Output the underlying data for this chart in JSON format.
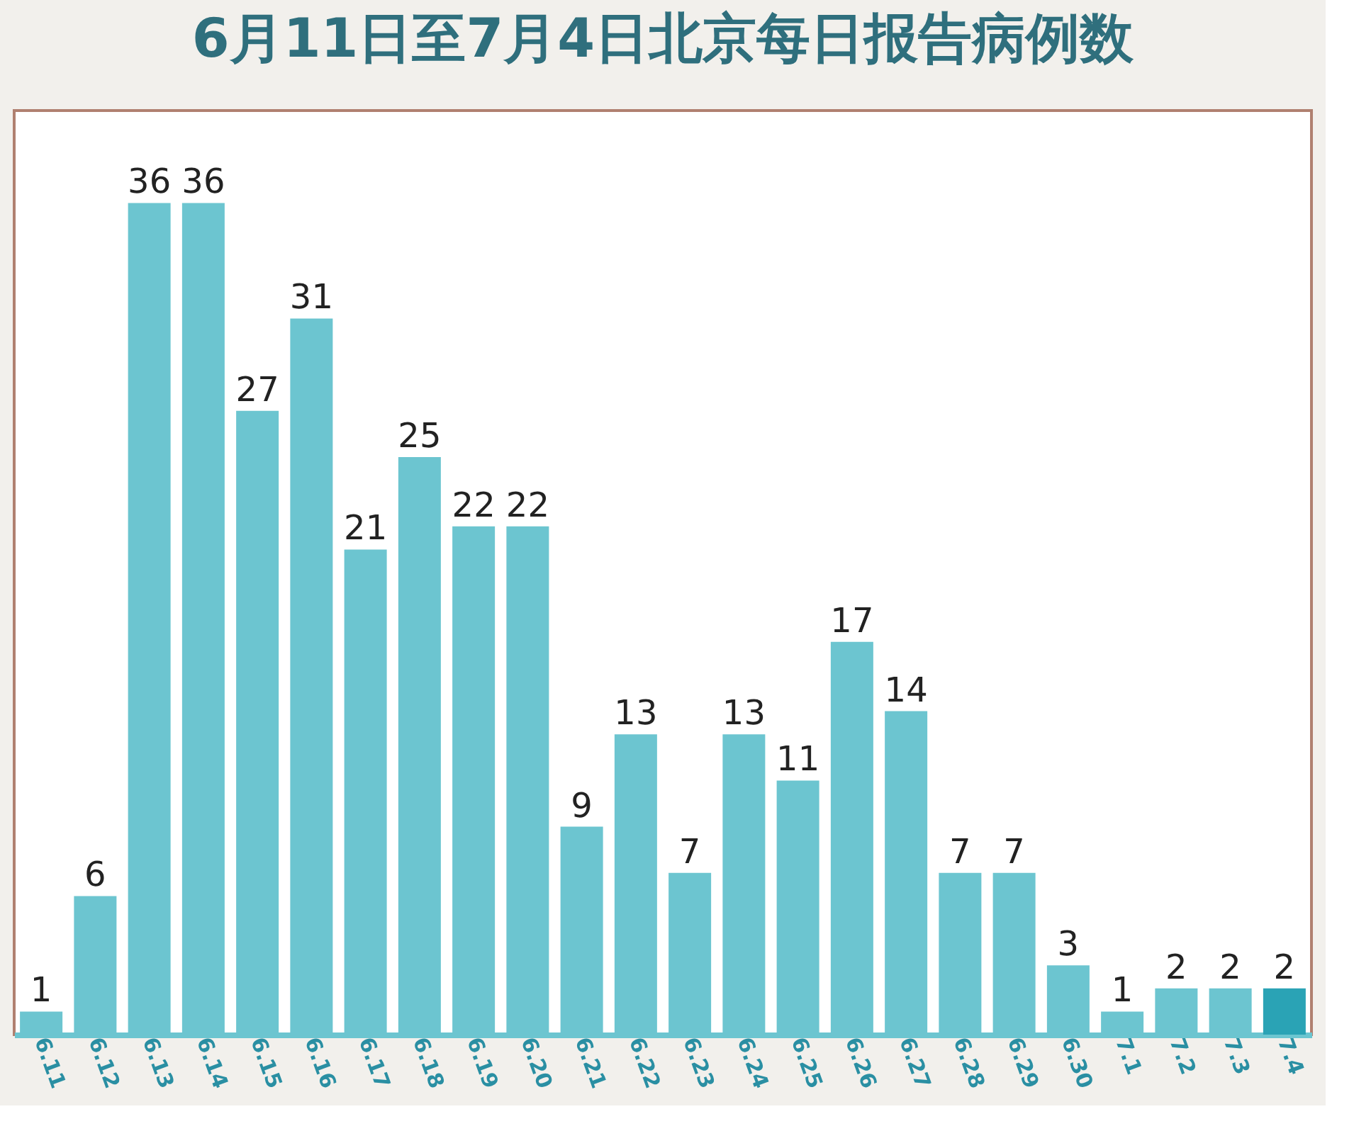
{
  "chart_data": {
    "type": "bar",
    "title": "6月11日至7月4日北京每日报告病例数",
    "categories": [
      "6.11",
      "6.12",
      "6.13",
      "6.14",
      "6.15",
      "6.16",
      "6.17",
      "6.18",
      "6.19",
      "6.20",
      "6.21",
      "6.22",
      "6.23",
      "6.24",
      "6.25",
      "6.26",
      "6.27",
      "6.28",
      "6.29",
      "6.30",
      "7.1",
      "7.2",
      "7.3",
      "7.4"
    ],
    "values": [
      1,
      6,
      36,
      36,
      27,
      31,
      21,
      25,
      22,
      22,
      9,
      13,
      7,
      13,
      11,
      17,
      14,
      7,
      7,
      3,
      1,
      2,
      2,
      2
    ],
    "colors": [
      "#6cc5d0",
      "#6cc5d0",
      "#6cc5d0",
      "#6cc5d0",
      "#6cc5d0",
      "#6cc5d0",
      "#6cc5d0",
      "#6cc5d0",
      "#6cc5d0",
      "#6cc5d0",
      "#6cc5d0",
      "#6cc5d0",
      "#6cc5d0",
      "#6cc5d0",
      "#6cc5d0",
      "#6cc5d0",
      "#6cc5d0",
      "#6cc5d0",
      "#6cc5d0",
      "#6cc5d0",
      "#6cc5d0",
      "#6cc5d0",
      "#6cc5d0",
      "#2aa3b5"
    ],
    "data_labels": true,
    "tick_labels": "x",
    "grid": false
  }
}
